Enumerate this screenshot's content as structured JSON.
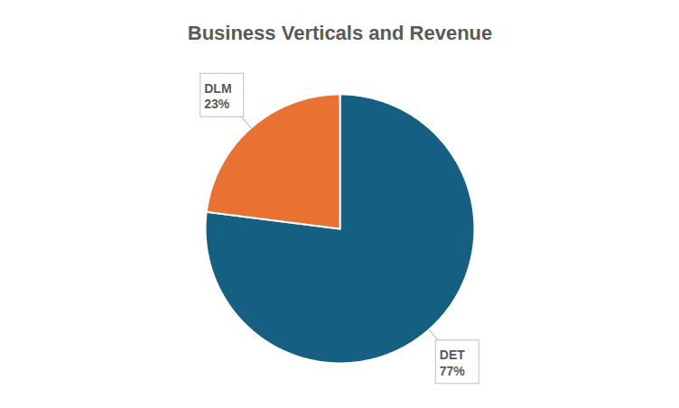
{
  "chart_data": {
    "type": "pie",
    "title": "Business Verticals and Revenue",
    "categories": [
      "DET",
      "DLM"
    ],
    "values": [
      77,
      23
    ],
    "value_labels": [
      "77%",
      "23%"
    ],
    "colors": [
      "#156082",
      "#e97132"
    ],
    "data_labels": true
  }
}
